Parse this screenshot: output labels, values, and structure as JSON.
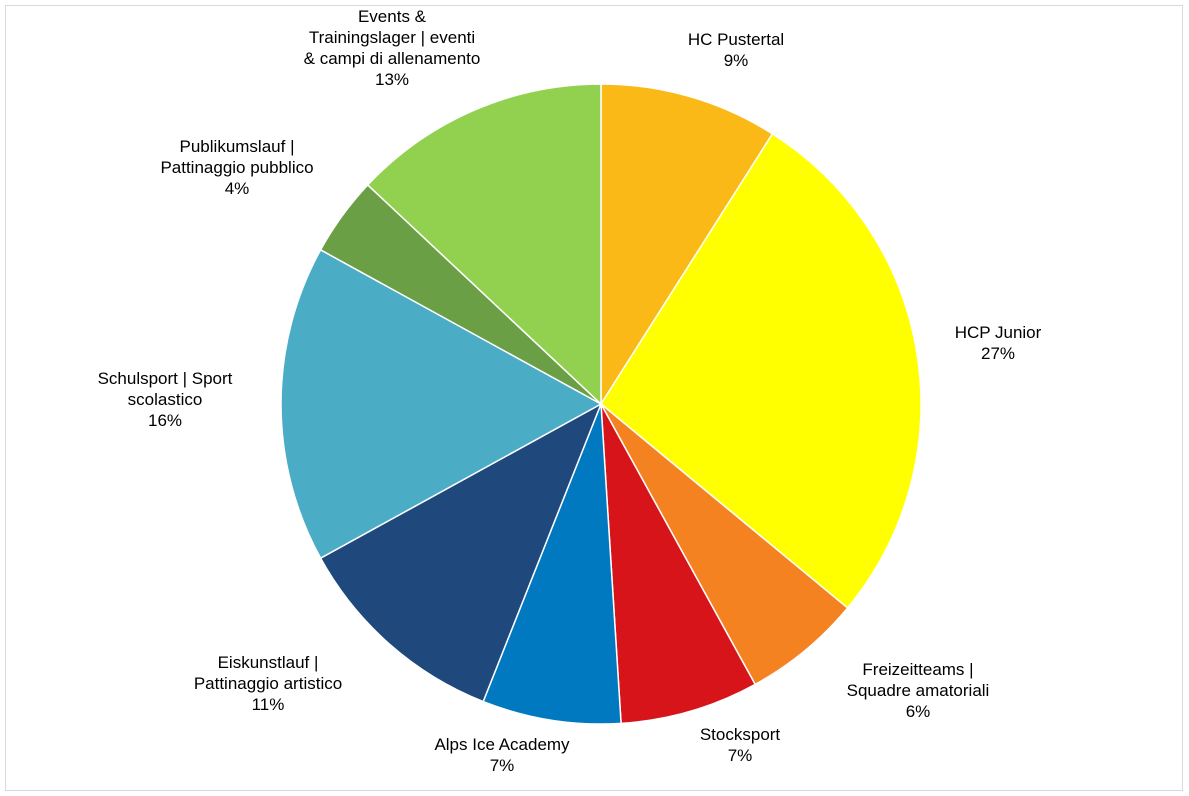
{
  "chart_data": {
    "type": "pie",
    "start_angle": "12 o'clock, clockwise",
    "slices": [
      {
        "label_lines": [
          "HC Pustertal"
        ],
        "pct_label": "9%",
        "value": 9,
        "color": "#FBB917"
      },
      {
        "label_lines": [
          "HCP Junior"
        ],
        "pct_label": "27%",
        "value": 27,
        "color": "#FFFF00"
      },
      {
        "label_lines": [
          "Freizeitteams |",
          "Squadre amatoriali"
        ],
        "pct_label": "6%",
        "value": 6,
        "color": "#F58220"
      },
      {
        "label_lines": [
          "Stocksport"
        ],
        "pct_label": "7%",
        "value": 7,
        "color": "#D7141A"
      },
      {
        "label_lines": [
          "Alps Ice Academy"
        ],
        "pct_label": "7%",
        "value": 7,
        "color": "#0079C1"
      },
      {
        "label_lines": [
          "Eiskunstlauf |",
          "Pattinaggio artistico"
        ],
        "pct_label": "11%",
        "value": 11,
        "color": "#1F497D"
      },
      {
        "label_lines": [
          "Schulsport | Sport",
          "scolastico"
        ],
        "pct_label": "16%",
        "value": 16,
        "color": "#4BACC6"
      },
      {
        "label_lines": [
          "Publikumslauf |",
          "Pattinaggio pubblico"
        ],
        "pct_label": "4%",
        "value": 4,
        "color": "#6A9F45"
      },
      {
        "label_lines": [
          "Events &",
          "Trainingslager | eventi",
          "& campi di allenamento"
        ],
        "pct_label": "13%",
        "value": 13,
        "color": "#92D050"
      }
    ]
  }
}
